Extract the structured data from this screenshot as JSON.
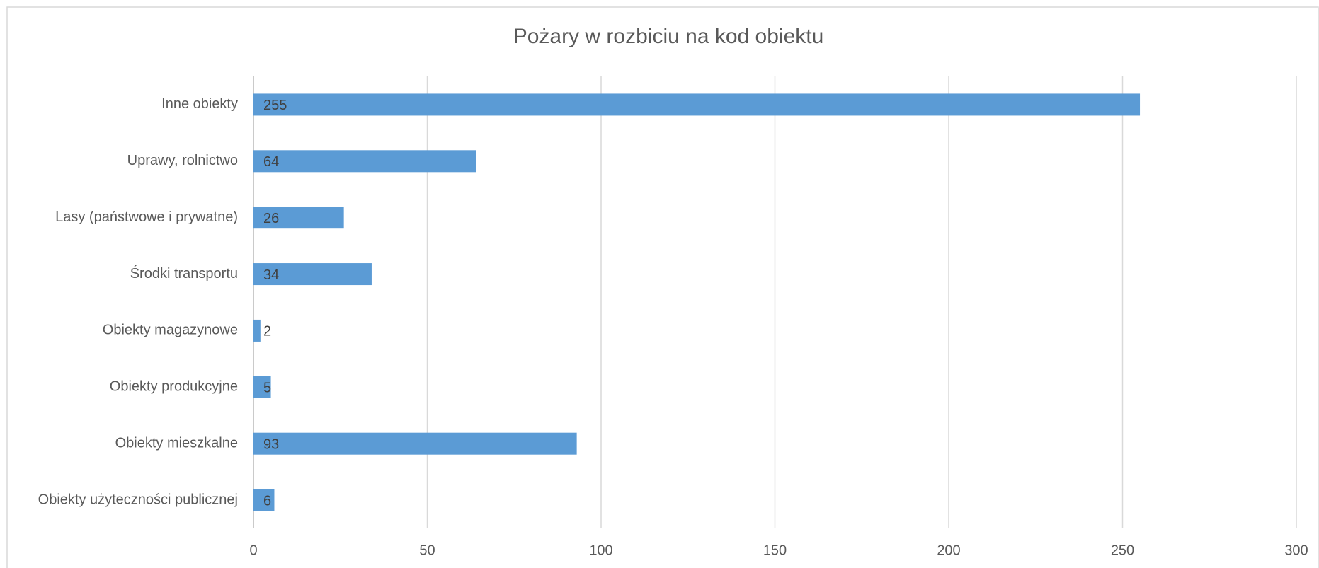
{
  "chart_data": {
    "type": "barh",
    "title": "Pożary w rozbiciu na kod obiektu",
    "categories": [
      "Inne obiekty",
      "Uprawy, rolnictwo",
      "Lasy (państwowe i prywatne)",
      "Środki transportu",
      "Obiekty magazynowe",
      "Obiekty produkcyjne",
      "Obiekty mieszkalne",
      "Obiekty użyteczności publicznej"
    ],
    "values": [
      255,
      64,
      26,
      34,
      2,
      5,
      93,
      6
    ],
    "color": "#5b9bd5",
    "xlim": [
      0,
      300
    ],
    "xticks": [
      0,
      50,
      100,
      150,
      200,
      250,
      300
    ],
    "grid": true
  }
}
